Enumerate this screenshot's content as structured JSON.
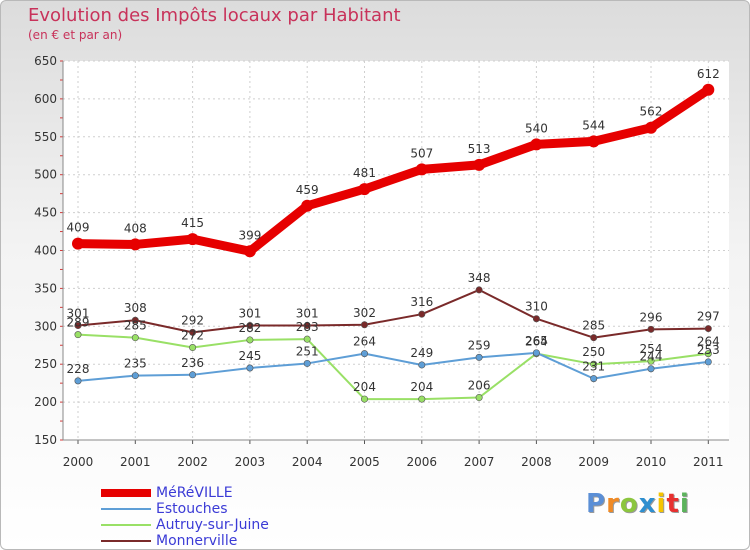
{
  "title": "Evolution des Impôts locaux par Habitant",
  "subtitle": "(en € et par an)",
  "logo": {
    "text": "Proxiti",
    "letter_colors": [
      "#5b8fd6",
      "#f08a25",
      "#8cc63f",
      "#2e8fd0",
      "#f5c400",
      "#e8302f",
      "#5bb35b"
    ]
  },
  "chart_data": {
    "type": "line",
    "x": [
      "2000",
      "2001",
      "2002",
      "2003",
      "2004",
      "2005",
      "2006",
      "2007",
      "2008",
      "2009",
      "2010",
      "2011"
    ],
    "ylim": [
      150,
      650
    ],
    "yticks": [
      150,
      200,
      250,
      300,
      350,
      400,
      450,
      500,
      550,
      600,
      650
    ],
    "grid": true,
    "legend_position": "bottom-left",
    "series": [
      {
        "name": "MéRéVILLE",
        "color": "#e60000",
        "values": [
          409,
          408,
          415,
          399,
          459,
          481,
          507,
          513,
          540,
          544,
          562,
          612
        ]
      },
      {
        "name": "Estouches",
        "color": "#5e9ed6",
        "values": [
          228,
          235,
          236,
          245,
          251,
          264,
          249,
          259,
          265,
          231,
          244,
          253
        ]
      },
      {
        "name": "Autruy-sur-Juine",
        "color": "#99e066",
        "values": [
          289,
          285,
          272,
          282,
          283,
          204,
          204,
          206,
          264,
          250,
          254,
          264
        ]
      },
      {
        "name": "Monnerville",
        "color": "#7a2a2a",
        "values": [
          301,
          308,
          292,
          301,
          301,
          302,
          316,
          348,
          310,
          285,
          296,
          297
        ]
      }
    ]
  }
}
